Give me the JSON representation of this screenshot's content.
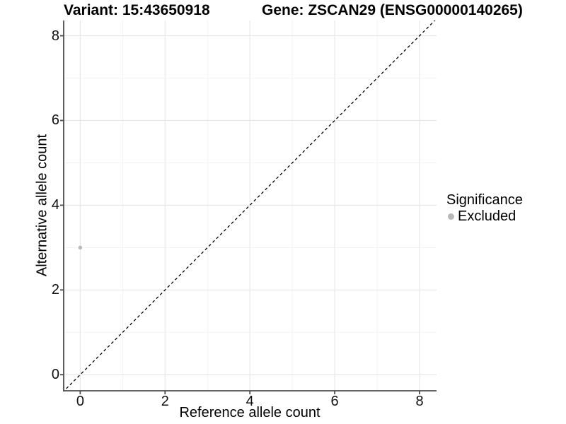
{
  "header": {
    "variant_title": "Variant: 15:43650918",
    "gene_title": "Gene: ZSCAN29 (ENSG00000140265)"
  },
  "chart_data": {
    "type": "scatter",
    "xlabel": "Reference allele count",
    "ylabel": "Alternative allele count",
    "xlim": [
      -0.39,
      8.4
    ],
    "ylim": [
      -0.38,
      8.36
    ],
    "x_ticks": [
      0,
      2,
      4,
      6,
      8
    ],
    "y_ticks": [
      0,
      2,
      4,
      6,
      8
    ],
    "x_minor_ticks": [
      1,
      3,
      5,
      7
    ],
    "y_minor_ticks": [
      1,
      3,
      5,
      7
    ],
    "grid": "on",
    "identity_line": {
      "type": "abline",
      "slope": 1,
      "intercept": 0,
      "style": "dashed",
      "color": "#000000"
    },
    "series": [
      {
        "name": "Excluded",
        "color": "#b8b8b8",
        "points": [
          {
            "x": 0,
            "y": 3
          }
        ]
      }
    ],
    "legend": {
      "title": "Significance",
      "position": "right",
      "items": [
        {
          "label": "Excluded",
          "color": "#b8b8b8"
        }
      ]
    },
    "colors": {
      "axis": "#4d4d4d",
      "grid_major": "#e7e7e7",
      "grid_minor": "#f3f3f3",
      "background": "#ffffff"
    }
  }
}
